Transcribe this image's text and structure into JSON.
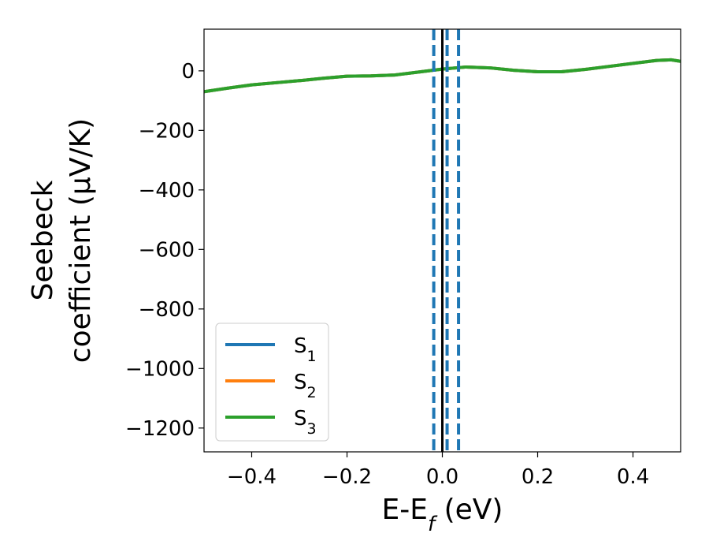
{
  "chart_data": {
    "type": "line",
    "xlabel": "E-E_f (eV)",
    "ylabel_line1": "Seebeck",
    "ylabel_line2": "coefficient  (μV/K)",
    "xlim": [
      -0.5,
      0.5
    ],
    "ylim": [
      -1280,
      140
    ],
    "xticks": [
      -0.4,
      -0.2,
      0.0,
      0.2,
      0.4
    ],
    "xtick_labels": [
      "−0.4",
      "−0.2",
      "0.0",
      "0.2",
      "0.4"
    ],
    "yticks": [
      0,
      -200,
      -400,
      -600,
      -800,
      -1000,
      -1200
    ],
    "ytick_labels": [
      "0",
      "−200",
      "−400",
      "−600",
      "−800",
      "−1000",
      "−1200"
    ],
    "grid": false,
    "legend_position": "bottom-left",
    "legend": [
      {
        "base": "S",
        "sub": "1",
        "color": "#1f77b4"
      },
      {
        "base": "S",
        "sub": "2",
        "color": "#ff7f0e"
      },
      {
        "base": "S",
        "sub": "3",
        "color": "#2ca02c"
      }
    ],
    "series": [
      {
        "name": "S1",
        "color": "#1f77b4",
        "x": [
          -0.5,
          -0.45,
          -0.4,
          -0.35,
          -0.3,
          -0.25,
          -0.2,
          -0.15,
          -0.1,
          -0.05,
          0.0,
          0.05,
          0.1,
          0.15,
          0.2,
          0.25,
          0.3,
          0.35,
          0.4,
          0.45,
          0.48,
          0.5
        ],
        "y": [
          -70,
          -58,
          -47,
          -40,
          -33,
          -25,
          -18,
          -17,
          -14,
          -4,
          6,
          13,
          10,
          2,
          -3,
          -3,
          5,
          15,
          25,
          35,
          37,
          32
        ]
      },
      {
        "name": "S2",
        "color": "#ff7f0e",
        "x": [
          -0.5,
          -0.45,
          -0.4,
          -0.35,
          -0.3,
          -0.25,
          -0.2,
          -0.15,
          -0.1,
          -0.05,
          0.0,
          0.05,
          0.1,
          0.15,
          0.2,
          0.25,
          0.3,
          0.35,
          0.4,
          0.45,
          0.48,
          0.5
        ],
        "y": [
          -70,
          -58,
          -47,
          -40,
          -33,
          -25,
          -18,
          -17,
          -14,
          -4,
          6,
          13,
          10,
          2,
          -3,
          -3,
          5,
          15,
          25,
          35,
          37,
          32
        ]
      },
      {
        "name": "S3",
        "color": "#2ca02c",
        "x": [
          -0.5,
          -0.45,
          -0.4,
          -0.35,
          -0.3,
          -0.25,
          -0.2,
          -0.15,
          -0.1,
          -0.05,
          0.0,
          0.05,
          0.1,
          0.15,
          0.2,
          0.25,
          0.3,
          0.35,
          0.4,
          0.45,
          0.48,
          0.5
        ],
        "y": [
          -70,
          -58,
          -47,
          -40,
          -33,
          -25,
          -18,
          -17,
          -14,
          -4,
          6,
          13,
          10,
          2,
          -3,
          -3,
          5,
          15,
          25,
          35,
          37,
          32
        ]
      }
    ],
    "vlines": [
      {
        "x": 0.0,
        "style": "solid",
        "color": "#000000"
      },
      {
        "x": -0.018,
        "style": "dashed",
        "color": "#1f77b4"
      },
      {
        "x": 0.01,
        "style": "dashed",
        "color": "#1f77b4"
      },
      {
        "x": 0.034,
        "style": "dashed",
        "color": "#1f77b4"
      }
    ]
  }
}
